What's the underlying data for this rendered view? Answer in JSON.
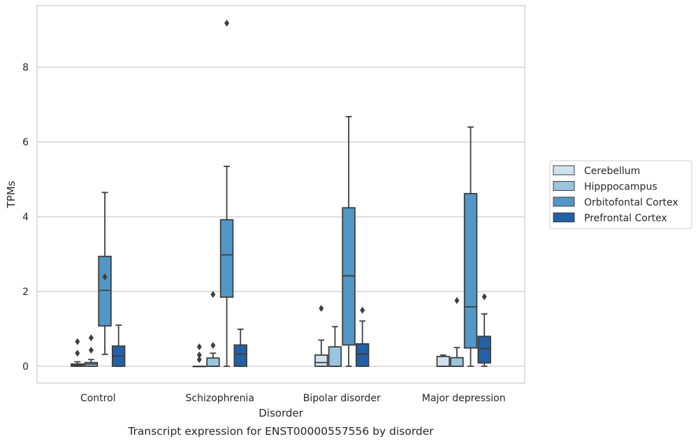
{
  "chart_data": {
    "type": "boxplot",
    "title": "Transcript expression for ENST00000557556 by disorder",
    "xlabel": "Disorder",
    "ylabel": "TPMs",
    "ylim": [
      -0.45,
      9.65
    ],
    "yticks": [
      0,
      2,
      4,
      6,
      8
    ],
    "grid": "horizontal",
    "legend_position": "right",
    "categories": [
      "Control",
      "Schizophrenia",
      "Bipolar disorder",
      "Major depression"
    ],
    "series": [
      {
        "name": "Cerebellum",
        "color": "#d0e1f2",
        "boxes": [
          {
            "whislo": 0.0,
            "q1": 0.0,
            "med": 0.03,
            "q3": 0.06,
            "whishi": 0.12,
            "fliers": [
              0.35,
              0.66
            ]
          },
          {
            "whislo": 0.0,
            "q1": 0.0,
            "med": 0.0,
            "q3": 0.0,
            "whishi": 0.0,
            "fliers": [
              0.18,
              0.3,
              0.52
            ]
          },
          {
            "whislo": 0.0,
            "q1": 0.0,
            "med": 0.1,
            "q3": 0.3,
            "whishi": 0.7,
            "fliers": [
              1.55
            ]
          },
          {
            "whislo": 0.0,
            "q1": 0.0,
            "med": 0.0,
            "q3": 0.26,
            "whishi": 0.3,
            "fliers": []
          }
        ]
      },
      {
        "name": "Hipppocampus",
        "color": "#9ac5e0",
        "boxes": [
          {
            "whislo": 0.0,
            "q1": 0.0,
            "med": 0.06,
            "q3": 0.1,
            "whishi": 0.18,
            "fliers": [
              0.43,
              0.76
            ]
          },
          {
            "whislo": 0.0,
            "q1": 0.0,
            "med": 0.0,
            "q3": 0.22,
            "whishi": 0.35,
            "fliers": [
              0.56,
              1.92
            ]
          },
          {
            "whislo": 0.0,
            "q1": 0.0,
            "med": 0.0,
            "q3": 0.52,
            "whishi": 1.06,
            "fliers": []
          },
          {
            "whislo": 0.0,
            "q1": 0.0,
            "med": 0.0,
            "q3": 0.23,
            "whishi": 0.5,
            "fliers": [
              1.76
            ]
          }
        ]
      },
      {
        "name": "Orbitofontal Cortex",
        "color": "#5297c6",
        "boxes": [
          {
            "whislo": 0.32,
            "q1": 1.08,
            "med": 2.03,
            "q3": 2.94,
            "whishi": 4.65,
            "fliers": [
              2.39
            ]
          },
          {
            "whislo": 0.0,
            "q1": 1.85,
            "med": 2.98,
            "q3": 3.92,
            "whishi": 5.35,
            "fliers": [
              9.18
            ]
          },
          {
            "whislo": 0.0,
            "q1": 0.57,
            "med": 2.42,
            "q3": 4.24,
            "whishi": 6.68,
            "fliers": []
          },
          {
            "whislo": 0.0,
            "q1": 0.49,
            "med": 1.59,
            "q3": 4.62,
            "whishi": 6.4,
            "fliers": []
          }
        ]
      },
      {
        "name": "Prefrontal Cortex",
        "color": "#2261a6",
        "boxes": [
          {
            "whislo": 0.0,
            "q1": 0.0,
            "med": 0.28,
            "q3": 0.54,
            "whishi": 1.1,
            "fliers": []
          },
          {
            "whislo": 0.0,
            "q1": 0.0,
            "med": 0.33,
            "q3": 0.57,
            "whishi": 0.99,
            "fliers": []
          },
          {
            "whislo": 0.0,
            "q1": 0.0,
            "med": 0.33,
            "q3": 0.6,
            "whishi": 1.21,
            "fliers": [
              1.5
            ]
          },
          {
            "whislo": 0.0,
            "q1": 0.09,
            "med": 0.47,
            "q3": 0.8,
            "whishi": 1.4,
            "fliers": [
              1.86
            ]
          }
        ]
      }
    ]
  }
}
